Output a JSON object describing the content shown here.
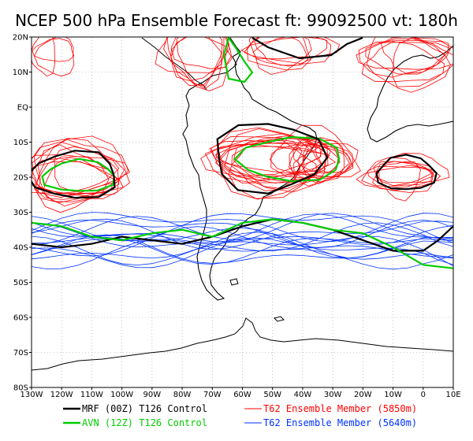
{
  "title": "NCEP 500 hPa Ensemble Forecast  ft: 99092500 vt: 180h",
  "axes": {
    "lat_labels": [
      "20N",
      "10N",
      "EQ",
      "10S",
      "20S",
      "30S",
      "40S",
      "50S",
      "60S",
      "70S",
      "80S"
    ],
    "lon_labels": [
      "130W",
      "120W",
      "110W",
      "100W",
      "90W",
      "80W",
      "70W",
      "60W",
      "50W",
      "40W",
      "30W",
      "20W",
      "10W",
      "0",
      "10E"
    ]
  },
  "colors": {
    "mrf": "#000000",
    "avn": "#00cc00",
    "red_member": "#ff0000",
    "blue_member": "#0033ff",
    "coast": "#000000",
    "grid": "#999999"
  },
  "legend": [
    {
      "id": "mrf",
      "label": "MRF (00Z) T126 Control",
      "color": "#000000"
    },
    {
      "id": "avn",
      "label": "AVN (12Z) T126 Control",
      "color": "#00cc00"
    },
    {
      "id": "red",
      "label": "T62 Ensemble Member (5850m)",
      "color": "#ff0000"
    },
    {
      "id": "blue",
      "label": "T62 Ensemble Member (5640m)",
      "color": "#0033ff"
    }
  ],
  "chart_data": {
    "type": "map",
    "region": {
      "lon_range": [
        -130,
        10
      ],
      "lat_range": [
        -80,
        20
      ]
    },
    "contours": [
      {
        "series": "MRF (00Z) T126 Control",
        "level": "5640m",
        "points": [
          [
            -130,
            -39
          ],
          [
            -120,
            -40
          ],
          [
            -110,
            -39
          ],
          [
            -100,
            -37
          ],
          [
            -90,
            -38
          ],
          [
            -80,
            -39
          ],
          [
            -70,
            -37
          ],
          [
            -60,
            -34
          ],
          [
            -50,
            -32
          ],
          [
            -40,
            -33
          ],
          [
            -30,
            -35
          ],
          [
            -20,
            -38
          ],
          [
            -10,
            -41
          ],
          [
            0,
            -41
          ],
          [
            5,
            -38
          ],
          [
            10,
            -34
          ]
        ]
      },
      {
        "series": "AVN (12Z) T126 Control",
        "level": "5640m",
        "points": [
          [
            -130,
            -33
          ],
          [
            -120,
            -34
          ],
          [
            -110,
            -37
          ],
          [
            -100,
            -38
          ],
          [
            -90,
            -36
          ],
          [
            -80,
            -35
          ],
          [
            -70,
            -37
          ],
          [
            -60,
            -33
          ],
          [
            -50,
            -32
          ],
          [
            -40,
            -33
          ],
          [
            -30,
            -35
          ],
          [
            -20,
            -36
          ],
          [
            -10,
            -40
          ],
          [
            0,
            -45
          ],
          [
            10,
            -46
          ]
        ]
      }
    ]
  }
}
